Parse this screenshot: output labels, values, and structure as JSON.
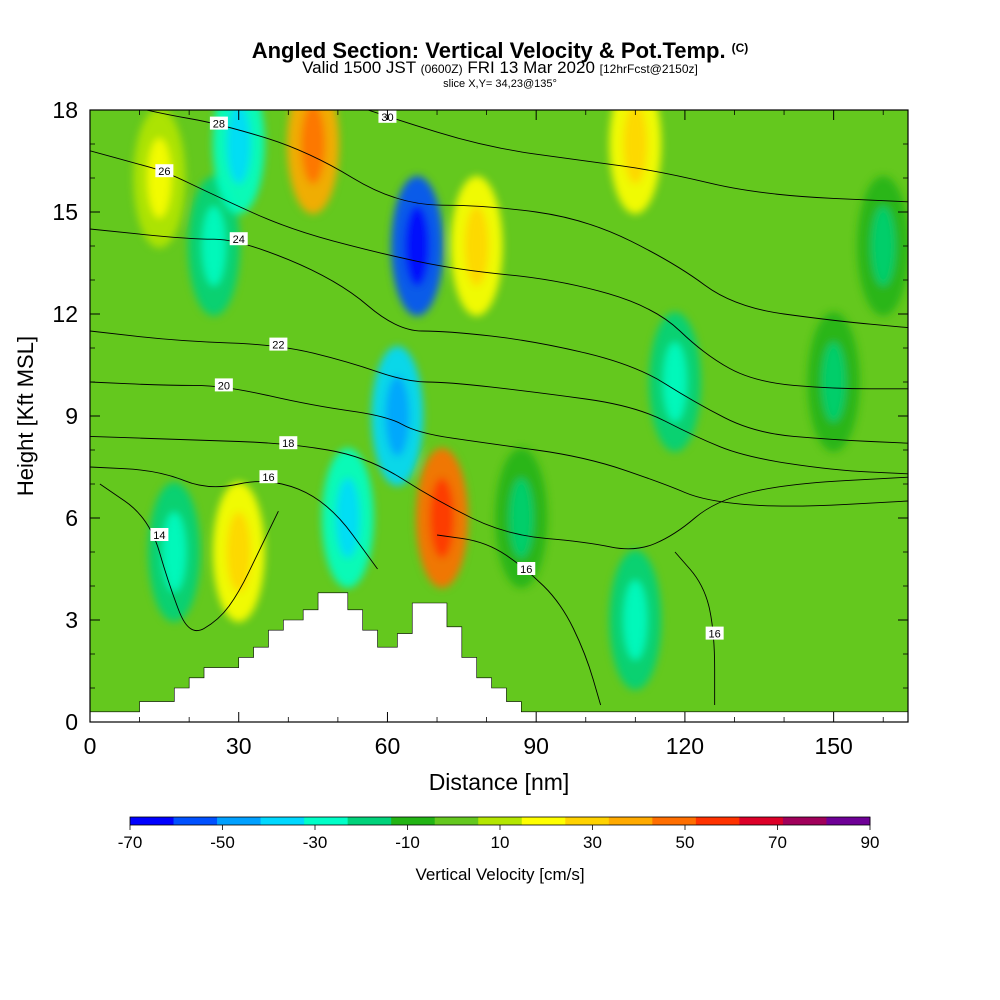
{
  "header": {
    "title": "Angled Section: Vertical Velocity & Pot.Temp.",
    "title_tag": "(C)",
    "valid_prefix": "Valid 1500 JST",
    "valid_utc": "(0600Z)",
    "valid_date": "FRI 13 Mar 2020",
    "forecast": "[12hrFcst@2150z]",
    "slice": "slice X,Y= 34,23@135°"
  },
  "chart_data": {
    "type": "heatmap",
    "xlabel": "Distance [nm]",
    "ylabel": "Height [Kft MSL]",
    "xlim": [
      0,
      165
    ],
    "ylim": [
      0,
      18
    ],
    "x_ticks": [
      0,
      30,
      60,
      90,
      120,
      150
    ],
    "y_ticks": [
      0,
      3,
      6,
      9,
      12,
      15,
      18
    ],
    "colorbar": {
      "label": "Vertical Velocity [cm/s]",
      "tick_labels": [
        "-70",
        "-50",
        "-30",
        "-10",
        "10",
        "30",
        "50",
        "70",
        "90"
      ],
      "levels": [
        -70,
        -60,
        -50,
        -40,
        -30,
        -20,
        -10,
        0,
        10,
        20,
        30,
        40,
        50,
        60,
        70,
        80,
        90
      ],
      "colors": [
        "#0000ff",
        "#0050ff",
        "#00a0ff",
        "#00d8ff",
        "#00ffc8",
        "#00d27a",
        "#22b414",
        "#64c81e",
        "#b4e600",
        "#ffff00",
        "#ffd200",
        "#ffaa00",
        "#ff6e00",
        "#ff3200",
        "#dc0028",
        "#a0005a",
        "#6e0096"
      ]
    },
    "terrain": [
      [
        0,
        0.3
      ],
      [
        10,
        0.3
      ],
      [
        10,
        0.6
      ],
      [
        17,
        0.6
      ],
      [
        17,
        1.0
      ],
      [
        20,
        1.0
      ],
      [
        20,
        1.3
      ],
      [
        23,
        1.3
      ],
      [
        23,
        1.6
      ],
      [
        30,
        1.6
      ],
      [
        30,
        1.9
      ],
      [
        33,
        1.9
      ],
      [
        33,
        2.2
      ],
      [
        36,
        2.2
      ],
      [
        36,
        2.7
      ],
      [
        39,
        2.7
      ],
      [
        39,
        3.0
      ],
      [
        43,
        3.0
      ],
      [
        43,
        3.3
      ],
      [
        46,
        3.3
      ],
      [
        46,
        3.8
      ],
      [
        52,
        3.8
      ],
      [
        52,
        3.3
      ],
      [
        55,
        3.3
      ],
      [
        55,
        2.7
      ],
      [
        58,
        2.7
      ],
      [
        58,
        2.2
      ],
      [
        62,
        2.2
      ],
      [
        62,
        2.6
      ],
      [
        65,
        2.6
      ],
      [
        65,
        3.5
      ],
      [
        72,
        3.5
      ],
      [
        72,
        2.8
      ],
      [
        75,
        2.8
      ],
      [
        75,
        1.9
      ],
      [
        78,
        1.9
      ],
      [
        78,
        1.3
      ],
      [
        81,
        1.3
      ],
      [
        81,
        1.0
      ],
      [
        84,
        1.0
      ],
      [
        84,
        0.6
      ],
      [
        87,
        0.6
      ],
      [
        87,
        0.3
      ],
      [
        165,
        0.3
      ]
    ],
    "velocity_features": [
      {
        "x": 14,
        "y": 16.0,
        "w": 10
      },
      {
        "x": 25,
        "y": 14.0,
        "w": -20
      },
      {
        "x": 30,
        "y": 17.0,
        "w": -30
      },
      {
        "x": 45,
        "y": 17.0,
        "w": 40
      },
      {
        "x": 66,
        "y": 14.0,
        "w": -60
      },
      {
        "x": 62,
        "y": 9.0,
        "w": -40
      },
      {
        "x": 52,
        "y": 6.0,
        "w": -30
      },
      {
        "x": 71,
        "y": 6.0,
        "w": 50
      },
      {
        "x": 78,
        "y": 14.0,
        "w": 20
      },
      {
        "x": 110,
        "y": 17.0,
        "w": 20
      },
      {
        "x": 118,
        "y": 10.0,
        "w": -20
      },
      {
        "x": 17,
        "y": 5.0,
        "w": -20
      },
      {
        "x": 30,
        "y": 5.0,
        "w": 20
      },
      {
        "x": 87,
        "y": 6.0,
        "w": -10
      },
      {
        "x": 110,
        "y": 3.0,
        "w": -20
      },
      {
        "x": 150,
        "y": 10.0,
        "w": -10
      },
      {
        "x": 160,
        "y": 14.0,
        "w": -10
      }
    ],
    "theta_contours": [
      {
        "label": "14",
        "label_at": [
          14,
          5.5
        ],
        "points": [
          [
            2,
            7.0
          ],
          [
            12,
            6.0
          ],
          [
            16,
            4.0
          ],
          [
            20,
            2.5
          ],
          [
            26,
            3.0
          ],
          [
            30,
            3.8
          ],
          [
            34,
            5.0
          ],
          [
            38,
            6.2
          ]
        ]
      },
      {
        "label": "16",
        "label_at": [
          36,
          7.2
        ],
        "points": [
          [
            0,
            7.5
          ],
          [
            14,
            7.4
          ],
          [
            24,
            6.8
          ],
          [
            36,
            7.2
          ],
          [
            48,
            6.5
          ],
          [
            58,
            4.5
          ]
        ]
      },
      {
        "label": "16",
        "label_at": [
          88,
          4.5
        ],
        "points": [
          [
            70,
            5.5
          ],
          [
            80,
            5.3
          ],
          [
            88,
            4.5
          ],
          [
            95,
            3.5
          ],
          [
            100,
            2.0
          ],
          [
            103,
            0.5
          ]
        ]
      },
      {
        "label": "16",
        "label_at": [
          126,
          2.6
        ],
        "points": [
          [
            118,
            5.0
          ],
          [
            124,
            4.0
          ],
          [
            126,
            2.6
          ],
          [
            126,
            0.5
          ]
        ]
      },
      {
        "label": "18",
        "label_at": [
          40,
          8.2
        ],
        "points": [
          [
            0,
            8.4
          ],
          [
            20,
            8.3
          ],
          [
            40,
            8.2
          ],
          [
            56,
            7.8
          ],
          [
            70,
            6.5
          ],
          [
            84,
            5.5
          ],
          [
            100,
            5.3
          ],
          [
            110,
            5.0
          ],
          [
            118,
            5.5
          ],
          [
            126,
            6.5
          ],
          [
            140,
            7.0
          ],
          [
            165,
            7.2
          ]
        ]
      },
      {
        "label": "20",
        "label_at": [
          27,
          9.9
        ],
        "points": [
          [
            0,
            10.0
          ],
          [
            15,
            9.9
          ],
          [
            27,
            9.9
          ],
          [
            45,
            9.3
          ],
          [
            60,
            9.0
          ],
          [
            66,
            8.5
          ],
          [
            80,
            8.2
          ],
          [
            100,
            7.8
          ],
          [
            116,
            7.0
          ],
          [
            124,
            6.5
          ],
          [
            140,
            6.3
          ],
          [
            165,
            6.5
          ]
        ]
      },
      {
        "label": "22",
        "label_at": [
          38,
          11.1
        ],
        "points": [
          [
            0,
            11.5
          ],
          [
            18,
            11.2
          ],
          [
            38,
            11.1
          ],
          [
            52,
            10.6
          ],
          [
            64,
            10.0
          ],
          [
            72,
            10.0
          ],
          [
            90,
            9.7
          ],
          [
            110,
            9.3
          ],
          [
            122,
            8.4
          ],
          [
            132,
            7.8
          ],
          [
            150,
            7.4
          ],
          [
            165,
            7.3
          ]
        ]
      },
      {
        "label": "24",
        "label_at": [
          30,
          14.2
        ],
        "points": [
          [
            0,
            14.5
          ],
          [
            20,
            14.2
          ],
          [
            30,
            14.2
          ],
          [
            50,
            13.0
          ],
          [
            62,
            11.5
          ],
          [
            72,
            11.5
          ],
          [
            90,
            11.2
          ],
          [
            110,
            10.5
          ],
          [
            122,
            9.4
          ],
          [
            134,
            8.5
          ],
          [
            150,
            8.3
          ],
          [
            165,
            8.2
          ]
        ]
      },
      {
        "label": "26",
        "label_at": [
          15,
          16.2
        ],
        "points": [
          [
            0,
            16.8
          ],
          [
            10,
            16.4
          ],
          [
            15,
            16.2
          ],
          [
            25,
            15.5
          ],
          [
            40,
            14.5
          ],
          [
            58,
            13.8
          ],
          [
            74,
            13.3
          ],
          [
            95,
            13.0
          ],
          [
            114,
            12.2
          ],
          [
            124,
            10.8
          ],
          [
            134,
            10.0
          ],
          [
            150,
            9.8
          ],
          [
            165,
            9.8
          ]
        ]
      },
      {
        "label": "28",
        "label_at": [
          26,
          17.6
        ],
        "points": [
          [
            0,
            18.4
          ],
          [
            14,
            17.9
          ],
          [
            26,
            17.6
          ],
          [
            44,
            16.8
          ],
          [
            62,
            15.2
          ],
          [
            80,
            15.2
          ],
          [
            100,
            14.8
          ],
          [
            118,
            13.5
          ],
          [
            130,
            12.2
          ],
          [
            150,
            11.8
          ],
          [
            165,
            11.6
          ]
        ]
      },
      {
        "label": "30",
        "label_at": [
          60,
          17.8
        ],
        "points": [
          [
            40,
            18.8
          ],
          [
            60,
            17.8
          ],
          [
            80,
            16.9
          ],
          [
            100,
            16.5
          ],
          [
            115,
            16.2
          ],
          [
            135,
            15.5
          ],
          [
            165,
            15.3
          ]
        ]
      }
    ]
  }
}
